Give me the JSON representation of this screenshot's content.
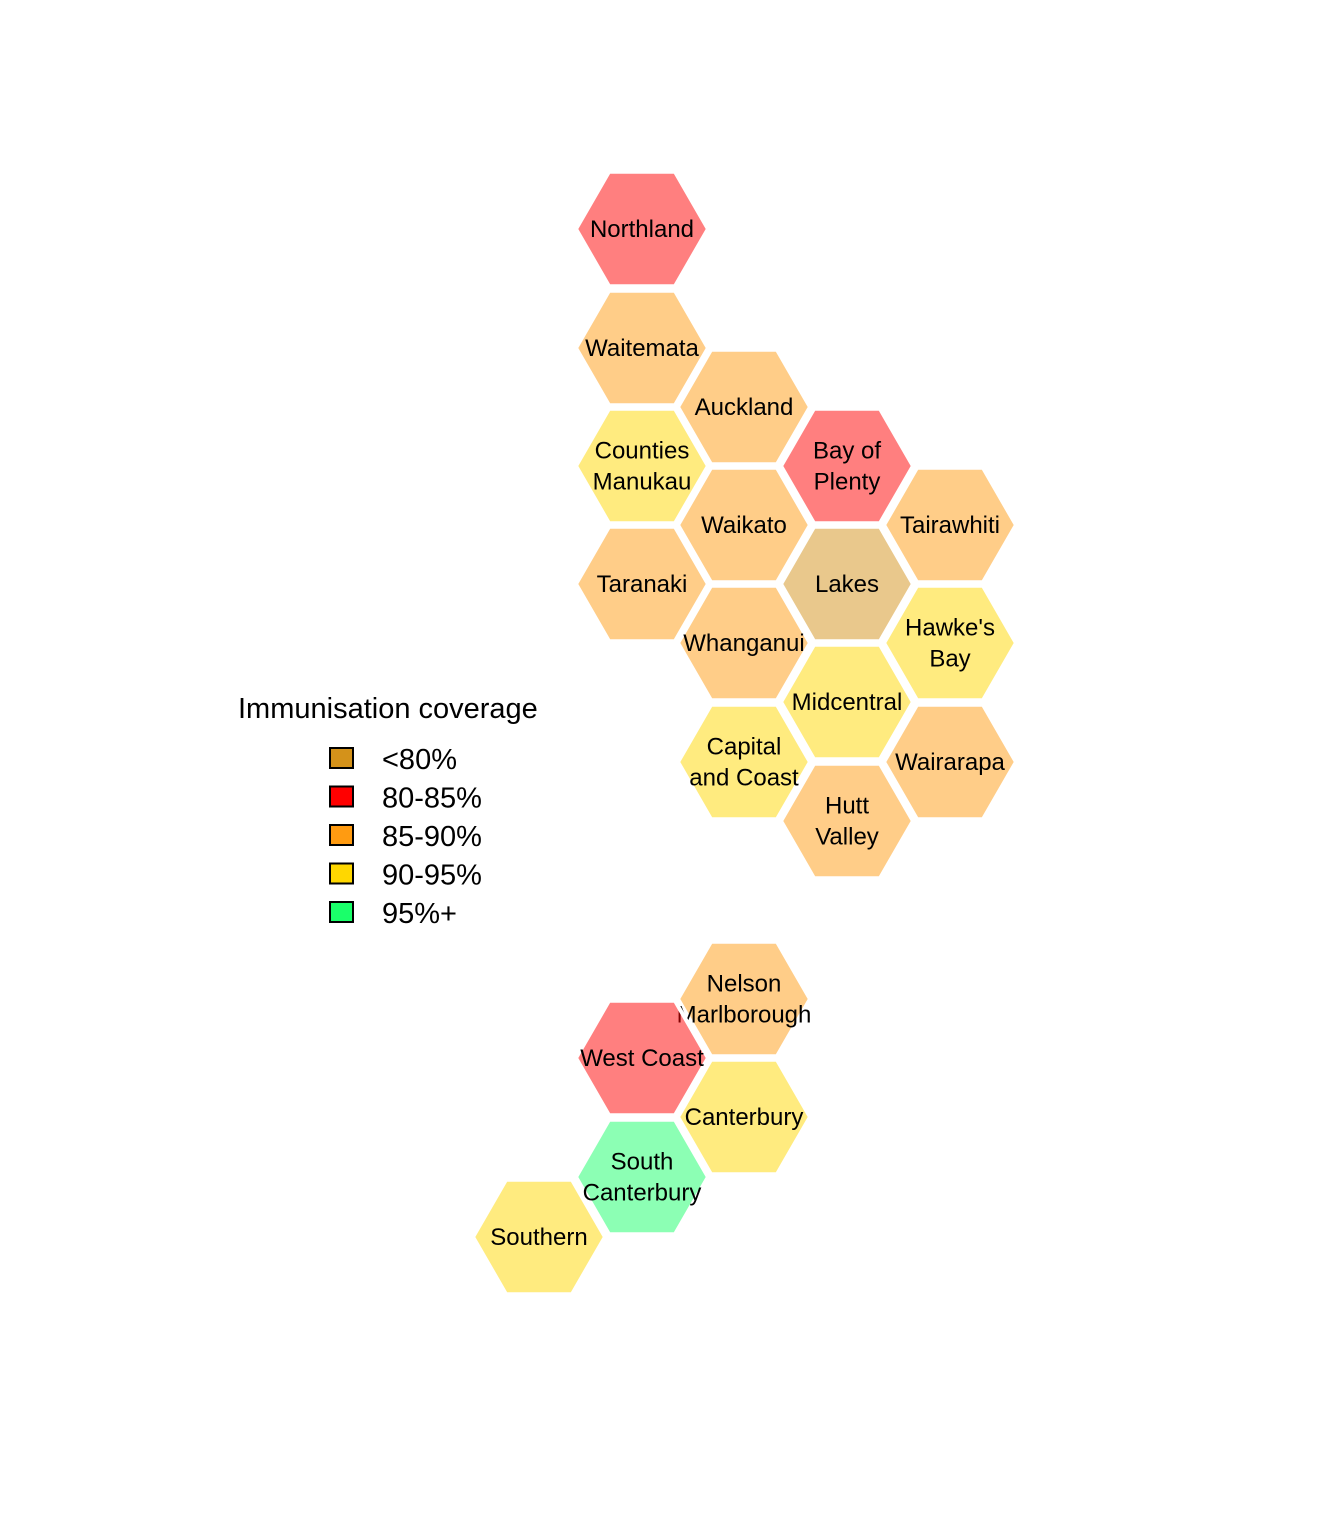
{
  "legend": {
    "title": "Immunisation coverage",
    "items": [
      {
        "label": "<80%",
        "color": "#D4921A"
      },
      {
        "label": "80-85%",
        "color": "#FF0000"
      },
      {
        "label": "85-90%",
        "color": "#FF9B11"
      },
      {
        "label": "90-95%",
        "color": "#FFD700"
      },
      {
        "label": "95%+",
        "color": "#1AFF6A"
      }
    ]
  },
  "regions": [
    {
      "name": "Northland",
      "lines": [
        "Northland"
      ],
      "category": "80-85%"
    },
    {
      "name": "Waitemata",
      "lines": [
        "Waitemata"
      ],
      "category": "85-90%"
    },
    {
      "name": "Auckland",
      "lines": [
        "Auckland"
      ],
      "category": "85-90%"
    },
    {
      "name": "Counties Manukau",
      "lines": [
        "Counties",
        "Manukau"
      ],
      "category": "90-95%"
    },
    {
      "name": "Bay of Plenty",
      "lines": [
        "Bay of",
        "Plenty"
      ],
      "category": "80-85%"
    },
    {
      "name": "Waikato",
      "lines": [
        "Waikato"
      ],
      "category": "85-90%"
    },
    {
      "name": "Tairawhiti",
      "lines": [
        "Tairawhiti"
      ],
      "category": "85-90%"
    },
    {
      "name": "Taranaki",
      "lines": [
        "Taranaki"
      ],
      "category": "85-90%"
    },
    {
      "name": "Lakes",
      "lines": [
        "Lakes"
      ],
      "category": "<80%"
    },
    {
      "name": "Whanganui",
      "lines": [
        "Whanganui"
      ],
      "category": "85-90%"
    },
    {
      "name": "Hawke's Bay",
      "lines": [
        "Hawke's",
        "Bay"
      ],
      "category": "90-95%"
    },
    {
      "name": "Midcentral",
      "lines": [
        "Midcentral"
      ],
      "category": "90-95%"
    },
    {
      "name": "Capital and Coast",
      "lines": [
        "Capital",
        "and Coast"
      ],
      "category": "90-95%"
    },
    {
      "name": "Wairarapa",
      "lines": [
        "Wairarapa"
      ],
      "category": "85-90%"
    },
    {
      "name": "Hutt Valley",
      "lines": [
        "Hutt",
        "Valley"
      ],
      "category": "85-90%"
    },
    {
      "name": "Nelson Marlborough",
      "lines": [
        "Nelson",
        "Marlborough"
      ],
      "category": "85-90%"
    },
    {
      "name": "West Coast",
      "lines": [
        "West Coast"
      ],
      "category": "80-85%"
    },
    {
      "name": "Canterbury",
      "lines": [
        "Canterbury"
      ],
      "category": "90-95%"
    },
    {
      "name": "South Canterbury",
      "lines": [
        "South",
        "Canterbury"
      ],
      "category": "95%+"
    },
    {
      "name": "Southern",
      "lines": [
        "Southern"
      ],
      "category": "90-95%"
    }
  ]
}
